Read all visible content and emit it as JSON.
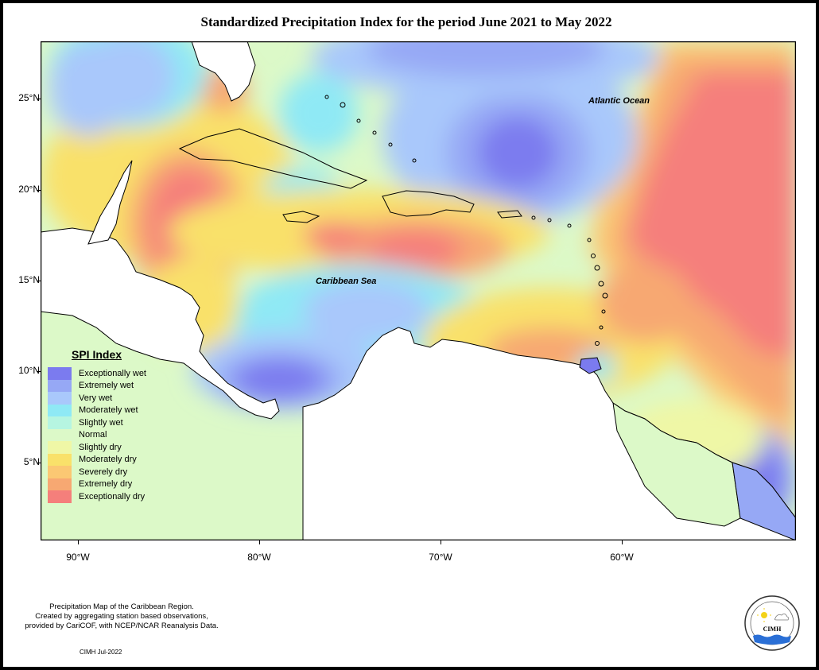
{
  "title": "Standardized Precipitation Index for the period June 2021 to May 2022",
  "axes": {
    "lat_labels": [
      "25°N",
      "20°N",
      "15°N",
      "10°N",
      "5°N"
    ],
    "lon_labels": [
      "90°W",
      "80°W",
      "70°W",
      "60°W"
    ]
  },
  "labels": {
    "atlantic": "Atlantic Ocean",
    "caribbean": "Caribbean Sea"
  },
  "legend": {
    "title": "SPI Index",
    "items": [
      {
        "label": "Exceptionally wet",
        "color": "#7b7bef"
      },
      {
        "label": "Extremely wet",
        "color": "#96a8f5"
      },
      {
        "label": "Very wet",
        "color": "#a9c8fb"
      },
      {
        "label": "Moderately wet",
        "color": "#8fe9f5"
      },
      {
        "label": "Slightly wet",
        "color": "#b6f5e1"
      },
      {
        "label": "Normal",
        "color": "#dcf9c8"
      },
      {
        "label": "Slightly dry",
        "color": "#eff7a6"
      },
      {
        "label": "Moderately dry",
        "color": "#f9e16a"
      },
      {
        "label": "Severely dry",
        "color": "#fbc873"
      },
      {
        "label": "Extremely dry",
        "color": "#f7a872"
      },
      {
        "label": "Exceptionally dry",
        "color": "#f57f7b"
      }
    ]
  },
  "footnote": {
    "line1": "Precipitation Map of the Caribbean Region.",
    "line2": "Created by aggregating station based observations,",
    "line3": "provided by CariCOF, with NCEP/NCAR Reanalysis Data."
  },
  "credit": "CIMH Jul-2022",
  "logo": {
    "text": "CIMH"
  }
}
